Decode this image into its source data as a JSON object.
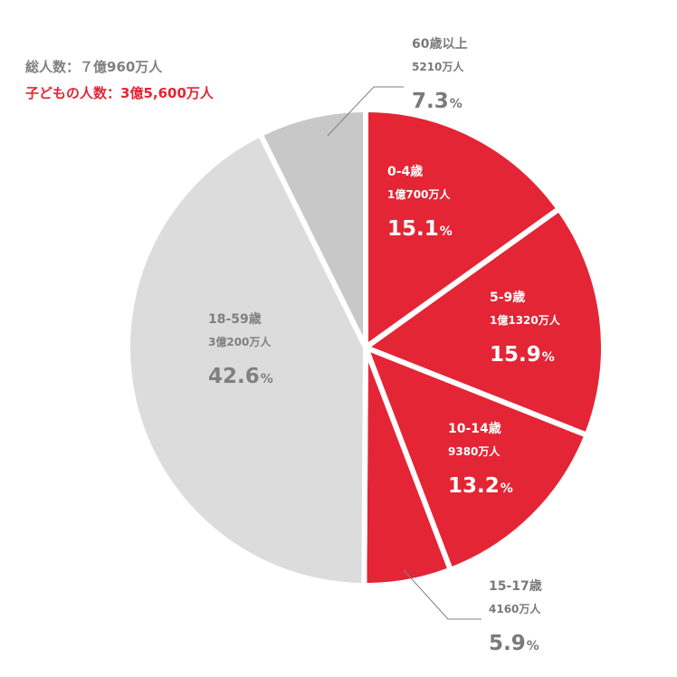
{
  "summary": {
    "total_label": "総人数：７億960万人",
    "children_label": "子どもの人数：3億5,600万人"
  },
  "colors": {
    "children": "#e42535",
    "adults": "#dcdcdc",
    "seniors": "#c8c8c9",
    "label_on_red": "#ffffff",
    "label_on_gray": "#808080",
    "label_outside": "#7a7a7a",
    "total_text": "#808080",
    "children_text": "#e42535",
    "separator": "#ffffff",
    "leader": "#7f7f7f"
  },
  "chart_data": {
    "type": "pie",
    "start": "top, clockwise",
    "slices": [
      {
        "label": "0-4歳",
        "value_text": "1億700万人",
        "value": 15.1,
        "pct_number": "15.1",
        "group": "children",
        "label_placement": "inside"
      },
      {
        "label": "5-9歳",
        "value_text": "1億1320万人",
        "value": 15.9,
        "pct_number": "15.9",
        "group": "children",
        "label_placement": "inside"
      },
      {
        "label": "10-14歳",
        "value_text": "9380万人",
        "value": 13.2,
        "pct_number": "13.2",
        "group": "children",
        "label_placement": "inside"
      },
      {
        "label": "15-17歳",
        "value_text": "4160万人",
        "value": 5.9,
        "pct_number": "5.9",
        "group": "children",
        "label_placement": "outside-bottom"
      },
      {
        "label": "18-59歳",
        "value_text": "3億200万人",
        "value": 42.6,
        "pct_number": "42.6",
        "group": "adults",
        "label_placement": "inside"
      },
      {
        "label": "60歳以上",
        "value_text": "5210万人",
        "value": 7.3,
        "pct_number": "7.3",
        "group": "seniors",
        "label_placement": "outside-top"
      }
    ],
    "percent_sign": "%"
  }
}
